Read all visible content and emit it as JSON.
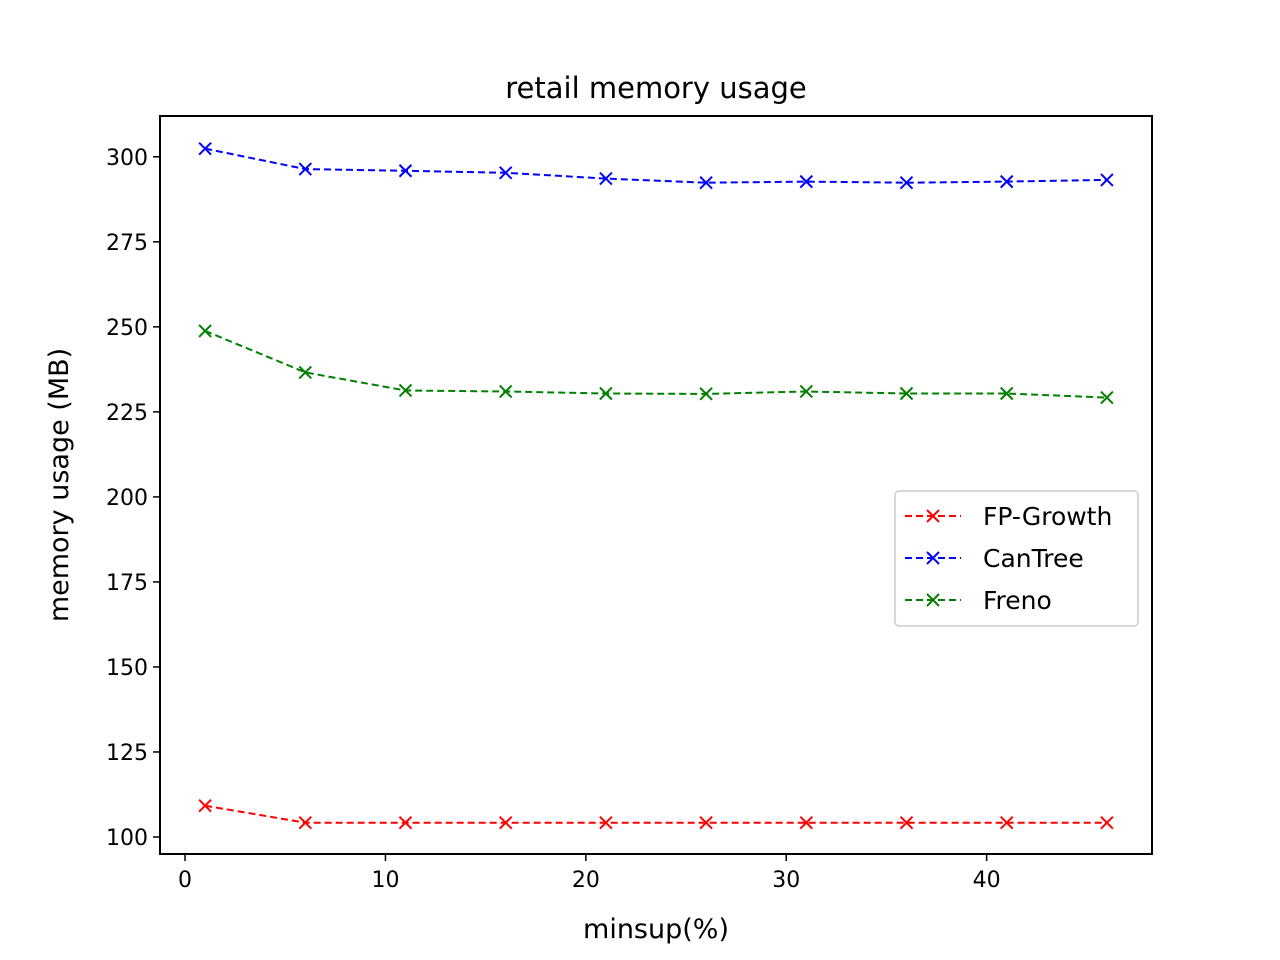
{
  "chart_data": {
    "type": "line",
    "title": "retail memory usage",
    "xlabel": "minsup(%)",
    "ylabel": "memory usage (MB)",
    "xlim": [
      -1.25,
      48.25
    ],
    "ylim": [
      95,
      312
    ],
    "xticks": [
      0,
      10,
      20,
      30,
      40
    ],
    "yticks": [
      100,
      125,
      150,
      175,
      200,
      225,
      250,
      275,
      300
    ],
    "x": [
      1,
      6,
      11,
      16,
      21,
      26,
      31,
      36,
      41,
      46
    ],
    "series": [
      {
        "name": "FP-Growth",
        "color": "#ff0000",
        "marker": "x",
        "linestyle": "dashed",
        "values": [
          109.2,
          104.2,
          104.2,
          104.2,
          104.2,
          104.2,
          104.2,
          104.2,
          104.2,
          104.2
        ]
      },
      {
        "name": "CanTree",
        "color": "#0000ff",
        "marker": "x",
        "linestyle": "dashed",
        "values": [
          302.4,
          296.4,
          295.9,
          295.3,
          293.6,
          292.4,
          292.7,
          292.4,
          292.7,
          293.2
        ]
      },
      {
        "name": "Freno",
        "color": "#008000",
        "marker": "x",
        "linestyle": "dashed",
        "values": [
          248.8,
          236.6,
          231.3,
          231.0,
          230.4,
          230.3,
          231.0,
          230.4,
          230.4,
          229.2
        ]
      }
    ],
    "grid": false,
    "legend_position": "center-right"
  }
}
